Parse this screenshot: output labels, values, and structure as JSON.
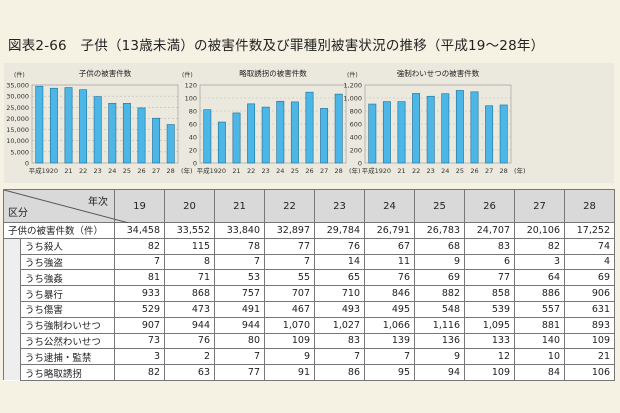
{
  "title": "図表2-66　子供（13歳未満）の被害件数及び罪種別被害状況の推移（平成19〜28年）",
  "chart_data": [
    {
      "type": "bar",
      "title": "子供の被害件数",
      "ylabel": "(件)",
      "xlabel": "(年)",
      "categories": [
        "平成19",
        "20",
        "21",
        "22",
        "23",
        "24",
        "25",
        "26",
        "27",
        "28"
      ],
      "values": [
        34458,
        33552,
        33840,
        32897,
        29784,
        26791,
        26783,
        24707,
        20106,
        17252
      ],
      "ylim": [
        0,
        35000
      ],
      "yticks": [
        "0",
        "5,000",
        "10,000",
        "15,000",
        "20,000",
        "25,000",
        "30,000",
        "35,000"
      ],
      "grid": true
    },
    {
      "type": "bar",
      "title": "略取誘拐の被害件数",
      "ylabel": "(件)",
      "xlabel": "(年)",
      "categories": [
        "平成19",
        "20",
        "21",
        "22",
        "23",
        "24",
        "25",
        "26",
        "27",
        "28"
      ],
      "values": [
        82,
        63,
        77,
        91,
        86,
        95,
        94,
        109,
        84,
        106
      ],
      "ylim": [
        0,
        120
      ],
      "yticks": [
        "0",
        "20",
        "40",
        "60",
        "80",
        "100",
        "120"
      ],
      "grid": true
    },
    {
      "type": "bar",
      "title": "強制わいせつの被害件数",
      "ylabel": "(件)",
      "xlabel": "(年)",
      "categories": [
        "平成19",
        "20",
        "21",
        "22",
        "23",
        "24",
        "25",
        "26",
        "27",
        "28"
      ],
      "values": [
        907,
        944,
        944,
        1070,
        1027,
        1066,
        1116,
        1095,
        881,
        893
      ],
      "ylim": [
        0,
        1200
      ],
      "yticks": [
        "0",
        "200",
        "400",
        "600",
        "800",
        "1,000",
        "1,200"
      ],
      "grid": true
    }
  ],
  "table": {
    "corner_top": "年次",
    "corner_bottom": "区分",
    "years": [
      "19",
      "20",
      "21",
      "22",
      "23",
      "24",
      "25",
      "26",
      "27",
      "28"
    ],
    "total": {
      "label": "子供の被害件数（件）",
      "values": [
        "34,458",
        "33,552",
        "33,840",
        "32,897",
        "29,784",
        "26,791",
        "26,783",
        "24,707",
        "20,106",
        "17,252"
      ]
    },
    "rows": [
      {
        "label": "うち殺人",
        "values": [
          "82",
          "115",
          "78",
          "77",
          "76",
          "67",
          "68",
          "83",
          "82",
          "74"
        ]
      },
      {
        "label": "うち強盗",
        "values": [
          "7",
          "8",
          "7",
          "7",
          "14",
          "11",
          "9",
          "6",
          "3",
          "4"
        ]
      },
      {
        "label": "うち強姦",
        "values": [
          "81",
          "71",
          "53",
          "55",
          "65",
          "76",
          "69",
          "77",
          "64",
          "69"
        ]
      },
      {
        "label": "うち暴行",
        "values": [
          "933",
          "868",
          "757",
          "707",
          "710",
          "846",
          "882",
          "858",
          "886",
          "906"
        ]
      },
      {
        "label": "うち傷害",
        "values": [
          "529",
          "473",
          "491",
          "467",
          "493",
          "495",
          "548",
          "539",
          "557",
          "631"
        ]
      },
      {
        "label": "うち強制わいせつ",
        "values": [
          "907",
          "944",
          "944",
          "1,070",
          "1,027",
          "1,066",
          "1,116",
          "1,095",
          "881",
          "893"
        ]
      },
      {
        "label": "うち公然わいせつ",
        "values": [
          "73",
          "76",
          "80",
          "109",
          "83",
          "139",
          "136",
          "133",
          "140",
          "109"
        ]
      },
      {
        "label": "うち逮捕・監禁",
        "values": [
          "3",
          "2",
          "7",
          "9",
          "7",
          "7",
          "9",
          "12",
          "10",
          "21"
        ]
      },
      {
        "label": "うち略取誘拐",
        "values": [
          "82",
          "63",
          "77",
          "91",
          "86",
          "95",
          "94",
          "109",
          "84",
          "106"
        ]
      }
    ]
  },
  "colors": {
    "bar": "#4cb6e6",
    "bar_edge": "#1f6f9a"
  }
}
